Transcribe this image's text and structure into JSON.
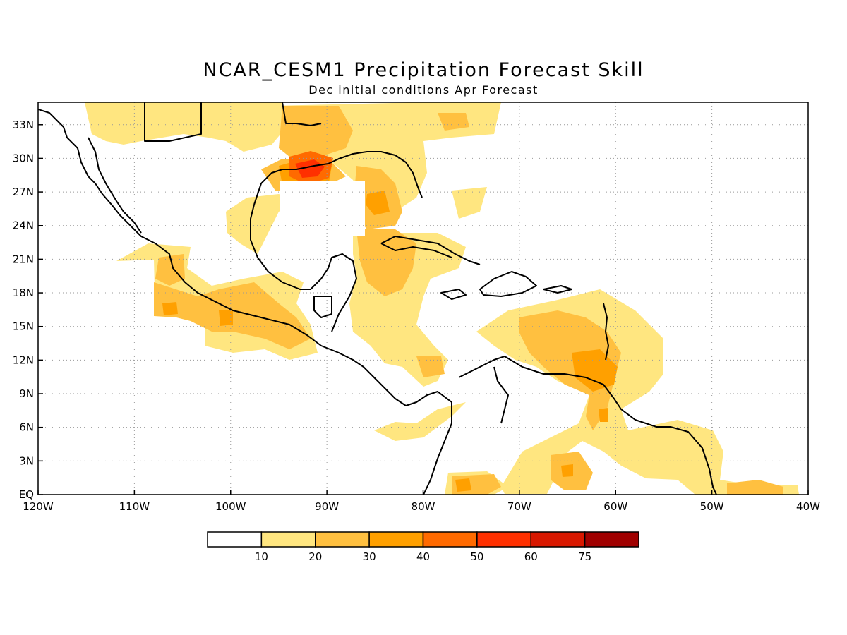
{
  "figure": {
    "title": "NCAR_CESM1 Precipitation Forecast Skill",
    "subtitle": "Dec initial conditions  Apr Forecast"
  },
  "map": {
    "region": "Central America, Caribbean, Gulf of Mexico and northern South America",
    "projection": "lat-lon",
    "lon_range": [
      -120,
      -40
    ],
    "lat_range": [
      0,
      35
    ],
    "x_ticks": [
      "120W",
      "110W",
      "100W",
      "90W",
      "80W",
      "70W",
      "60W",
      "50W",
      "40W"
    ],
    "y_ticks": [
      "EQ",
      "3N",
      "6N",
      "9N",
      "12N",
      "15N",
      "18N",
      "21N",
      "24N",
      "27N",
      "30N",
      "33N"
    ],
    "gridlines": "dotted",
    "coastline_color": "#000000"
  },
  "colorbar": {
    "labels": [
      "10",
      "20",
      "30",
      "40",
      "50",
      "60",
      "75"
    ],
    "colors": [
      "#ffffff",
      "#ffe680",
      "#ffc040",
      "#ffa000",
      "#ff6a00",
      "#ff3000",
      "#d81800",
      "#a00000"
    ]
  },
  "skill_regions": [
    {
      "area": "Louisiana coast / northern Gulf",
      "level": "50-60"
    },
    {
      "area": "Northern Gulf of Mexico",
      "level": "40-50"
    },
    {
      "area": "Eastern Gulf / Cuba",
      "level": "30-40"
    },
    {
      "area": "Southwest Mexico",
      "level": "20-30"
    },
    {
      "area": "Eastern Caribbean / Lesser Antilles",
      "level": "30-40"
    },
    {
      "area": "Trinidad / Venezuela coast",
      "level": "30-40"
    },
    {
      "area": "Southeast US",
      "level": "10-20"
    },
    {
      "area": "Western Colombia near equator",
      "level": "30-40"
    },
    {
      "area": "Amazon mouth / Atlantic near equator",
      "level": "20-30"
    }
  ]
}
